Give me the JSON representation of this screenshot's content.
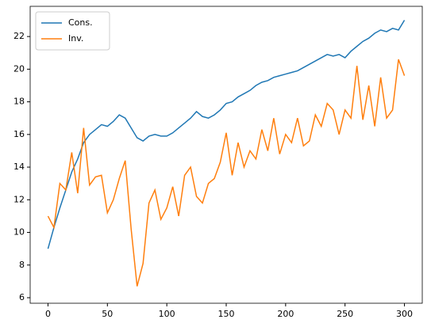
{
  "chart_data": {
    "type": "line",
    "x": [
      0,
      5,
      10,
      15,
      20,
      25,
      30,
      35,
      40,
      45,
      50,
      55,
      60,
      65,
      70,
      75,
      80,
      85,
      90,
      95,
      100,
      105,
      110,
      115,
      120,
      125,
      130,
      135,
      140,
      145,
      150,
      155,
      160,
      165,
      170,
      175,
      180,
      185,
      190,
      195,
      200,
      205,
      210,
      215,
      220,
      225,
      230,
      235,
      240,
      245,
      250,
      255,
      260,
      265,
      270,
      275,
      280,
      285,
      290,
      295,
      300
    ],
    "series": [
      {
        "name": "Cons.",
        "color": "#1f77b4",
        "values": [
          9.0,
          10.3,
          11.5,
          12.6,
          13.7,
          14.5,
          15.5,
          16.0,
          16.3,
          16.6,
          16.5,
          16.8,
          17.2,
          17.0,
          16.4,
          15.8,
          15.6,
          15.9,
          16.0,
          15.9,
          15.9,
          16.1,
          16.4,
          16.7,
          17.0,
          17.4,
          17.1,
          17.0,
          17.2,
          17.5,
          17.9,
          18.0,
          18.3,
          18.5,
          18.7,
          19.0,
          19.2,
          19.3,
          19.5,
          19.6,
          19.7,
          19.8,
          19.9,
          20.1,
          20.3,
          20.5,
          20.7,
          20.9,
          20.8,
          20.9,
          20.7,
          21.1,
          21.4,
          21.7,
          21.9,
          22.2,
          22.4,
          22.3,
          22.5,
          22.4,
          23.0
        ]
      },
      {
        "name": "Inv.",
        "color": "#ff7f0e",
        "values": [
          11.0,
          10.3,
          13.0,
          12.6,
          14.9,
          12.4,
          16.4,
          12.9,
          13.4,
          13.5,
          11.2,
          12.0,
          13.3,
          14.4,
          10.2,
          6.7,
          8.1,
          11.8,
          12.6,
          10.8,
          11.5,
          12.8,
          11.0,
          13.5,
          14.0,
          12.2,
          11.8,
          13.0,
          13.3,
          14.3,
          16.1,
          13.5,
          15.5,
          14.0,
          15.0,
          14.5,
          16.3,
          15.0,
          17.0,
          14.8,
          16.0,
          15.5,
          17.0,
          15.3,
          15.6,
          17.2,
          16.5,
          17.9,
          17.5,
          16.0,
          17.5,
          17.0,
          20.2,
          16.9,
          19.0,
          16.5,
          19.5,
          17.0,
          17.5,
          20.6,
          19.6
        ]
      }
    ],
    "xlim": [
      -15,
      315
    ],
    "xticks": [
      0,
      50,
      100,
      150,
      200,
      250,
      300
    ],
    "ylim": [
      5.66,
      23.85
    ],
    "yticks": [
      6,
      8,
      10,
      12,
      14,
      16,
      18,
      20,
      22
    ],
    "legend": "upper left"
  }
}
